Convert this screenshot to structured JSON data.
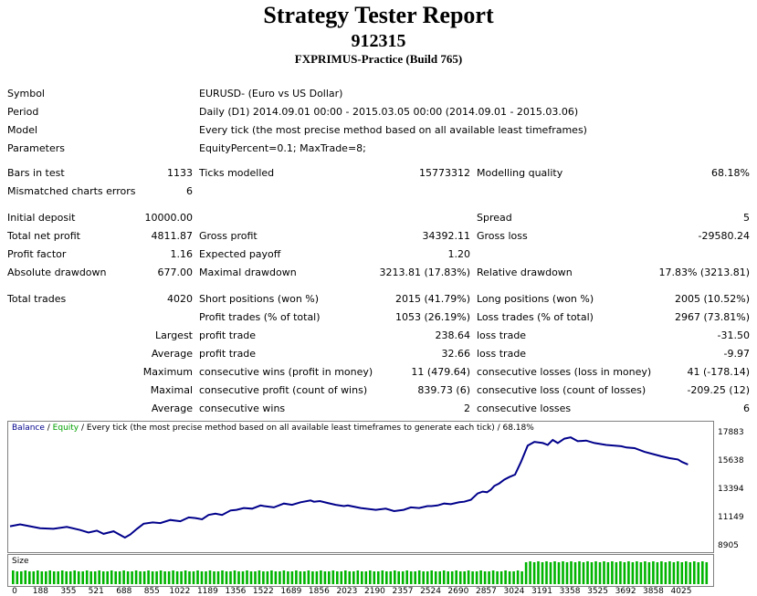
{
  "header": {
    "title": "Strategy Tester Report",
    "account": "912315",
    "server": "FXPRIMUS-Practice (Build 765)"
  },
  "info": {
    "symbol_label": "Symbol",
    "symbol": "EURUSD- (Euro vs US Dollar)",
    "period_label": "Period",
    "period": "Daily (D1) 2014.09.01 00:00 - 2015.03.05 00:00 (2014.09.01 - 2015.03.06)",
    "model_label": "Model",
    "model": "Every tick (the most precise method based on all available least timeframes)",
    "parameters_label": "Parameters",
    "parameters": "EquityPercent=0.1; MaxTrade=8;"
  },
  "stats": {
    "bars_label": "Bars in test",
    "bars": "1133",
    "ticks_label": "Ticks modelled",
    "ticks": "15773312",
    "quality_label": "Modelling quality",
    "quality": "68.18%",
    "mismatch_label": "Mismatched charts errors",
    "mismatch": "6",
    "initial_deposit_label": "Initial deposit",
    "initial_deposit": "10000.00",
    "spread_label": "Spread",
    "spread": "5",
    "net_profit_label": "Total net profit",
    "net_profit": "4811.87",
    "gross_profit_label": "Gross profit",
    "gross_profit": "34392.11",
    "gross_loss_label": "Gross loss",
    "gross_loss": "-29580.24",
    "profit_factor_label": "Profit factor",
    "profit_factor": "1.16",
    "expected_payoff_label": "Expected payoff",
    "expected_payoff": "1.20",
    "abs_dd_label": "Absolute drawdown",
    "abs_dd": "677.00",
    "max_dd_label": "Maximal drawdown",
    "max_dd": "3213.81 (17.83%)",
    "rel_dd_label": "Relative drawdown",
    "rel_dd": "17.83% (3213.81)",
    "total_trades_label": "Total trades",
    "total_trades": "4020",
    "short_label": "Short positions (won %)",
    "short": "2015 (41.79%)",
    "long_label": "Long positions (won %)",
    "long": "2005 (10.52%)",
    "profit_trades_label": "Profit trades (% of total)",
    "profit_trades": "1053 (26.19%)",
    "loss_trades_label": "Loss trades (% of total)",
    "loss_trades": "2967 (73.81%)",
    "largest_label": "Largest",
    "largest_profit_label": "profit trade",
    "largest_profit": "238.64",
    "largest_loss_label": "loss trade",
    "largest_loss": "-31.50",
    "average_label": "Average",
    "average_profit_label": "profit trade",
    "average_profit": "32.66",
    "average_loss_label": "loss trade",
    "average_loss": "-9.97",
    "maximum_label": "Maximum",
    "max_cons_wins_label": "consecutive wins (profit in money)",
    "max_cons_wins": "11 (479.64)",
    "max_cons_losses_label": "consecutive losses (loss in money)",
    "max_cons_losses": "41 (-178.14)",
    "maximal_label": "Maximal",
    "maximal_cons_profit_label": "consecutive profit (count of wins)",
    "maximal_cons_profit": "839.73 (6)",
    "maximal_cons_loss_label": "consecutive loss (count of losses)",
    "maximal_cons_loss": "-209.25 (12)",
    "average2_label": "Average",
    "avg_cons_wins_label": "consecutive wins",
    "avg_cons_wins": "2",
    "avg_cons_losses_label": "consecutive losses",
    "avg_cons_losses": "6"
  },
  "chart_data": {
    "type": "line",
    "caption_balance": "Balance",
    "caption_sep1": " / ",
    "caption_equity": "Equity",
    "caption_rest": " / Every tick (the most precise method based on all available least timeframes to generate each tick) / 68.18%",
    "y_ticks": [
      "17883",
      "15638",
      "13394",
      "11149",
      "8905"
    ],
    "ylim": [
      8905,
      17883
    ],
    "x_ticks": [
      "0",
      "188",
      "355",
      "521",
      "688",
      "855",
      "1022",
      "1189",
      "1356",
      "1522",
      "1689",
      "1856",
      "2023",
      "2190",
      "2357",
      "2524",
      "2690",
      "2857",
      "3024",
      "3191",
      "3358",
      "3525",
      "3692",
      "3858",
      "4025"
    ],
    "xlim": [
      0,
      4200
    ],
    "series": [
      {
        "name": "Balance",
        "color": "#00008b",
        "x": [
          0,
          60,
          120,
          180,
          260,
          340,
          420,
          470,
          520,
          560,
          620,
          688,
          720,
          760,
          800,
          855,
          900,
          960,
          1020,
          1070,
          1110,
          1150,
          1189,
          1230,
          1270,
          1320,
          1356,
          1400,
          1450,
          1500,
          1522,
          1580,
          1640,
          1689,
          1740,
          1800,
          1820,
          1856,
          1900,
          1950,
          2000,
          2023,
          2100,
          2190,
          2250,
          2300,
          2357,
          2400,
          2450,
          2500,
          2524,
          2560,
          2600,
          2640,
          2690,
          2720,
          2760,
          2800,
          2830,
          2857,
          2880,
          2900,
          2930,
          2960,
          2990,
          3024,
          3060,
          3100,
          3140,
          3191,
          3220,
          3250,
          3280,
          3320,
          3358,
          3400,
          3450,
          3500,
          3525,
          3570,
          3620,
          3660,
          3692,
          3740,
          3800,
          3858,
          3900,
          3950,
          4000,
          4025,
          4060
        ],
        "y": [
          10600,
          10750,
          10600,
          10450,
          10400,
          10550,
          10300,
          10100,
          10250,
          10000,
          10200,
          9700,
          9950,
          10400,
          10800,
          10900,
          10850,
          11100,
          11000,
          11300,
          11250,
          11150,
          11500,
          11600,
          11500,
          11850,
          11900,
          12050,
          12000,
          12250,
          12200,
          12100,
          12400,
          12300,
          12500,
          12650,
          12550,
          12600,
          12450,
          12300,
          12200,
          12250,
          12050,
          11900,
          12000,
          11800,
          11900,
          12100,
          12050,
          12200,
          12200,
          12250,
          12400,
          12350,
          12500,
          12550,
          12700,
          13200,
          13350,
          13300,
          13500,
          13800,
          14000,
          14300,
          14500,
          14700,
          15700,
          17000,
          17300,
          17200,
          17050,
          17450,
          17200,
          17550,
          17650,
          17350,
          17400,
          17200,
          17150,
          17050,
          17000,
          16950,
          16850,
          16800,
          16500,
          16300,
          16150,
          16000,
          15900,
          15700,
          15500
        ]
      }
    ],
    "size_label": "Size"
  }
}
